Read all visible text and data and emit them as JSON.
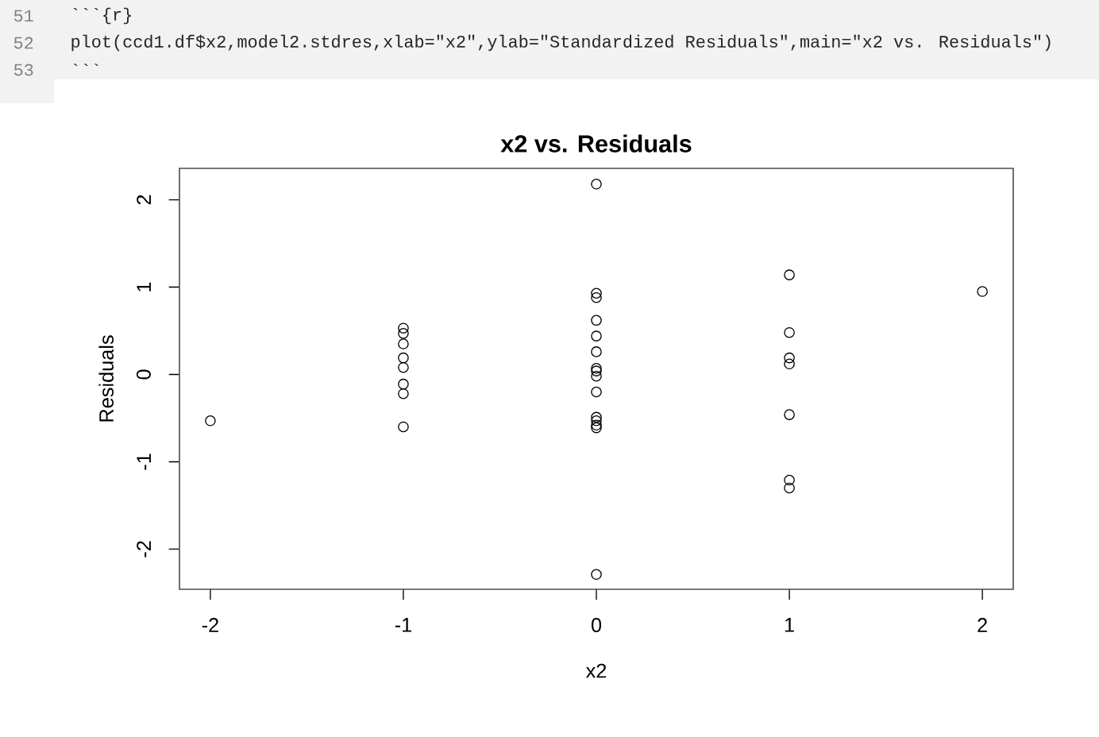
{
  "chart_data": {
    "type": "scatter",
    "title": "x2 vs. Residuals",
    "xlabel": "x2",
    "ylabel": "Residuals",
    "annotations": [
      "51",
      "```{r}",
      "52",
      "plot(ccd1.df$x2,model2.stdres,xlab=\"x2\",ylab=\"Standardized Residuals\",main=\"x2 vs. Residuals\")",
      "53",
      "```"
    ],
    "x": [
      -2,
      -1,
      -1,
      -1,
      -1,
      -1,
      -1,
      -1,
      -1,
      0,
      0,
      0,
      0,
      0,
      0,
      0,
      0,
      0,
      0,
      0,
      0,
      0,
      0,
      0,
      1,
      1,
      1,
      1,
      1,
      1,
      1,
      2
    ],
    "values": [
      -0.53,
      0.53,
      0.47,
      0.35,
      0.19,
      0.08,
      -0.11,
      -0.22,
      -0.6,
      2.18,
      0.93,
      0.88,
      0.62,
      0.44,
      0.26,
      0.07,
      0.04,
      -0.02,
      -0.2,
      -0.49,
      -0.53,
      -0.58,
      -0.61,
      -2.29,
      1.14,
      0.48,
      0.19,
      0.12,
      -0.46,
      -1.21,
      -1.3,
      0.95
    ],
    "color": "#000000",
    "marker": "circle",
    "grid": false,
    "xlim": [
      -2.16,
      2.16
    ],
    "ylim": [
      -2.46,
      2.36
    ],
    "xticks": [
      -2,
      -1,
      0,
      1,
      2
    ],
    "yticks": [
      -2,
      -1,
      0,
      1,
      2
    ]
  }
}
